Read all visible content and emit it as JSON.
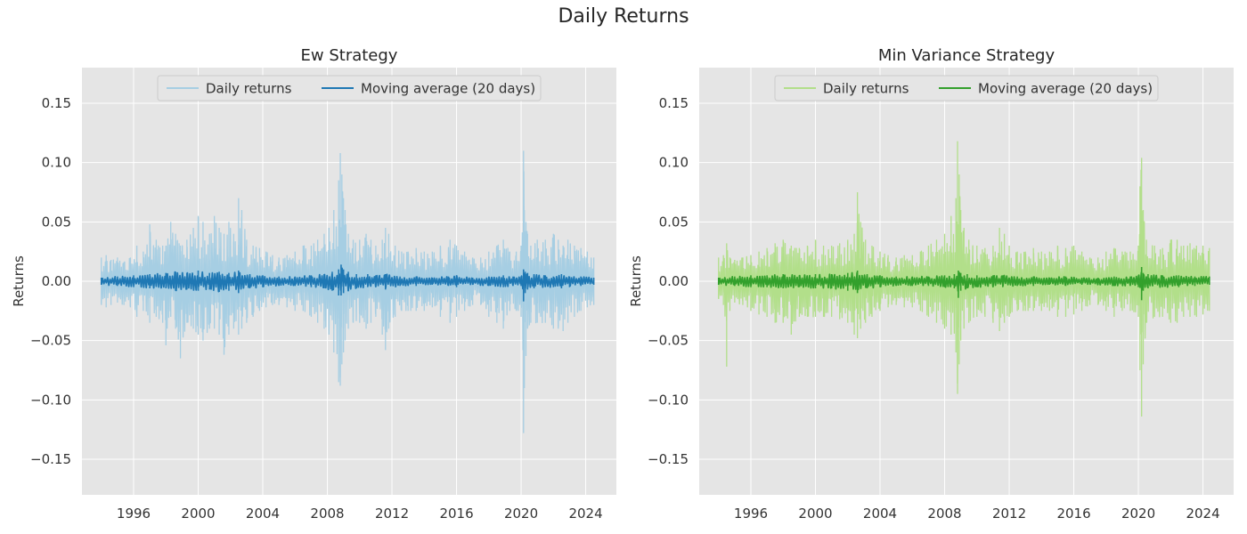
{
  "figure": {
    "title": "Daily Returns"
  },
  "chart_data": [
    {
      "type": "line",
      "title": "Ew Strategy",
      "xlabel": "",
      "ylabel": "Returns",
      "xlim": [
        1992.8,
        2025.9
      ],
      "ylim": [
        -0.18,
        0.18
      ],
      "x_ticks": [
        1996,
        2000,
        2004,
        2008,
        2012,
        2016,
        2020,
        2024
      ],
      "x_tick_labels": [
        "1996",
        "2000",
        "2004",
        "2008",
        "2012",
        "2016",
        "2020",
        "2024"
      ],
      "y_ticks": [
        -0.15,
        -0.1,
        -0.05,
        0.0,
        0.05,
        0.1,
        0.15
      ],
      "y_tick_labels": [
        "−0.15",
        "−0.10",
        "−0.05",
        "0.00",
        "0.05",
        "0.10",
        "0.15"
      ],
      "grid": true,
      "legend_position": "top-center",
      "series": [
        {
          "name": "Daily returns",
          "color": "#a6cee3",
          "x": [
            1994.0,
            1994.3,
            1994.6,
            1995.0,
            1995.4,
            1995.8,
            1996.2,
            1996.6,
            1997.0,
            1997.4,
            1997.8,
            1998.0,
            1998.3,
            1998.6,
            1998.9,
            1999.3,
            1999.7,
            2000.0,
            2000.3,
            2000.7,
            2001.0,
            2001.3,
            2001.6,
            2001.9,
            2002.2,
            2002.5,
            2002.7,
            2003.0,
            2003.4,
            2003.8,
            2004.2,
            2004.6,
            2005.0,
            2005.5,
            2006.0,
            2006.5,
            2007.0,
            2007.4,
            2007.8,
            2008.1,
            2008.4,
            2008.7,
            2008.8,
            2008.9,
            2009.0,
            2009.1,
            2009.3,
            2009.6,
            2010.0,
            2010.4,
            2010.7,
            2011.0,
            2011.4,
            2011.6,
            2011.8,
            2012.2,
            2012.6,
            2013.0,
            2013.5,
            2014.0,
            2014.5,
            2015.0,
            2015.6,
            2016.0,
            2016.5,
            2017.0,
            2017.5,
            2018.0,
            2018.5,
            2018.9,
            2019.3,
            2019.7,
            2020.0,
            2020.15,
            2020.2,
            2020.3,
            2020.4,
            2020.6,
            2021.0,
            2021.5,
            2022.0,
            2022.3,
            2022.6,
            2022.9,
            2023.3,
            2023.7,
            2024.1,
            2024.5
          ],
          "y_high": [
            0.02,
            0.022,
            0.018,
            0.02,
            0.016,
            0.02,
            0.03,
            0.025,
            0.048,
            0.035,
            0.03,
            0.03,
            0.05,
            0.04,
            0.03,
            0.035,
            0.045,
            0.055,
            0.05,
            0.04,
            0.055,
            0.045,
            0.04,
            0.05,
            0.04,
            0.07,
            0.06,
            0.035,
            0.03,
            0.028,
            0.025,
            0.022,
            0.02,
            0.022,
            0.025,
            0.03,
            0.03,
            0.035,
            0.04,
            0.045,
            0.06,
            0.085,
            0.108,
            0.09,
            0.07,
            0.06,
            0.04,
            0.035,
            0.035,
            0.04,
            0.035,
            0.03,
            0.035,
            0.045,
            0.04,
            0.03,
            0.025,
            0.025,
            0.028,
            0.025,
            0.025,
            0.03,
            0.035,
            0.03,
            0.025,
            0.02,
            0.02,
            0.025,
            0.03,
            0.035,
            0.025,
            0.025,
            0.03,
            0.11,
            0.06,
            0.05,
            0.04,
            0.03,
            0.035,
            0.035,
            0.04,
            0.035,
            0.03,
            0.035,
            0.03,
            0.028,
            0.025,
            0.02
          ],
          "y_low": [
            -0.02,
            -0.022,
            -0.02,
            -0.018,
            -0.02,
            -0.022,
            -0.03,
            -0.025,
            -0.035,
            -0.03,
            -0.035,
            -0.054,
            -0.03,
            -0.04,
            -0.065,
            -0.035,
            -0.04,
            -0.045,
            -0.05,
            -0.04,
            -0.04,
            -0.045,
            -0.062,
            -0.045,
            -0.04,
            -0.045,
            -0.04,
            -0.035,
            -0.03,
            -0.025,
            -0.022,
            -0.02,
            -0.02,
            -0.022,
            -0.025,
            -0.025,
            -0.03,
            -0.035,
            -0.04,
            -0.045,
            -0.06,
            -0.085,
            -0.088,
            -0.07,
            -0.06,
            -0.05,
            -0.04,
            -0.035,
            -0.035,
            -0.04,
            -0.035,
            -0.03,
            -0.045,
            -0.058,
            -0.04,
            -0.03,
            -0.025,
            -0.025,
            -0.025,
            -0.025,
            -0.022,
            -0.03,
            -0.035,
            -0.03,
            -0.025,
            -0.02,
            -0.02,
            -0.03,
            -0.035,
            -0.04,
            -0.025,
            -0.025,
            -0.03,
            -0.128,
            -0.09,
            -0.063,
            -0.04,
            -0.035,
            -0.035,
            -0.035,
            -0.04,
            -0.04,
            -0.042,
            -0.035,
            -0.03,
            -0.025,
            -0.022,
            -0.02
          ]
        },
        {
          "name": "Moving average (20 days)",
          "color": "#1f78b4",
          "x": [
            1994.0,
            1995.0,
            1996.0,
            1997.0,
            1998.0,
            1998.6,
            1999.3,
            2000.0,
            2000.7,
            2001.3,
            2001.9,
            2002.5,
            2003.2,
            2004.0,
            2005.0,
            2006.0,
            2007.0,
            2007.8,
            2008.3,
            2008.7,
            2008.85,
            2009.0,
            2009.3,
            2009.8,
            2010.5,
            2011.0,
            2011.6,
            2012.5,
            2013.5,
            2014.5,
            2015.5,
            2016.0,
            2017.0,
            2018.0,
            2018.9,
            2019.5,
            2020.0,
            2020.15,
            2020.25,
            2020.4,
            2020.8,
            2021.5,
            2022.0,
            2022.5,
            2023.0,
            2023.7,
            2024.5
          ],
          "y_high": [
            0.003,
            0.004,
            0.005,
            0.006,
            0.007,
            0.008,
            0.007,
            0.009,
            0.007,
            0.008,
            0.007,
            0.009,
            0.006,
            0.005,
            0.004,
            0.004,
            0.005,
            0.006,
            0.008,
            0.01,
            0.014,
            0.01,
            0.008,
            0.006,
            0.006,
            0.005,
            0.006,
            0.004,
            0.004,
            0.003,
            0.004,
            0.005,
            0.003,
            0.004,
            0.005,
            0.004,
            0.004,
            0.01,
            0.008,
            0.007,
            0.006,
            0.005,
            0.004,
            0.006,
            0.004,
            0.004,
            0.003
          ],
          "y_low": [
            -0.003,
            -0.004,
            -0.005,
            -0.006,
            -0.006,
            -0.008,
            -0.007,
            -0.008,
            -0.007,
            -0.009,
            -0.008,
            -0.01,
            -0.006,
            -0.005,
            -0.004,
            -0.004,
            -0.005,
            -0.006,
            -0.008,
            -0.012,
            -0.012,
            -0.01,
            -0.008,
            -0.006,
            -0.005,
            -0.005,
            -0.007,
            -0.004,
            -0.004,
            -0.003,
            -0.004,
            -0.005,
            -0.003,
            -0.004,
            -0.005,
            -0.004,
            -0.004,
            -0.017,
            -0.01,
            -0.007,
            -0.006,
            -0.005,
            -0.005,
            -0.006,
            -0.005,
            -0.004,
            -0.003
          ]
        }
      ]
    },
    {
      "type": "line",
      "title": "Min Variance Strategy",
      "xlabel": "",
      "ylabel": "Returns",
      "xlim": [
        1992.8,
        2025.9
      ],
      "ylim": [
        -0.18,
        0.18
      ],
      "x_ticks": [
        1996,
        2000,
        2004,
        2008,
        2012,
        2016,
        2020,
        2024
      ],
      "x_tick_labels": [
        "1996",
        "2000",
        "2004",
        "2008",
        "2012",
        "2016",
        "2020",
        "2024"
      ],
      "y_ticks": [
        -0.15,
        -0.1,
        -0.05,
        0.0,
        0.05,
        0.1,
        0.15
      ],
      "y_tick_labels": [
        "−0.15",
        "−0.10",
        "−0.05",
        "0.00",
        "0.05",
        "0.10",
        "0.15"
      ],
      "grid": true,
      "legend_position": "top-center",
      "series": [
        {
          "name": "Daily returns",
          "color": "#b2df8a",
          "x": [
            1994.0,
            1994.3,
            1994.5,
            1994.7,
            1995.0,
            1995.5,
            1996.0,
            1996.5,
            1997.0,
            1997.5,
            1998.0,
            1998.5,
            1999.0,
            1999.5,
            2000.0,
            2000.5,
            2001.0,
            2001.5,
            2002.0,
            2002.4,
            2002.6,
            2002.8,
            2003.1,
            2003.5,
            2004.0,
            2004.5,
            2005.0,
            2005.5,
            2006.0,
            2006.5,
            2007.0,
            2007.5,
            2008.0,
            2008.4,
            2008.7,
            2008.8,
            2008.9,
            2009.0,
            2009.2,
            2009.5,
            2010.0,
            2010.5,
            2011.0,
            2011.4,
            2011.7,
            2012.0,
            2012.5,
            2013.0,
            2013.5,
            2014.0,
            2014.5,
            2015.0,
            2015.5,
            2016.0,
            2016.5,
            2017.0,
            2017.5,
            2018.0,
            2018.5,
            2019.0,
            2019.5,
            2020.0,
            2020.1,
            2020.2,
            2020.3,
            2020.5,
            2021.0,
            2021.5,
            2022.0,
            2022.4,
            2022.8,
            2023.2,
            2023.6,
            2024.0,
            2024.4
          ],
          "y_high": [
            0.02,
            0.022,
            0.032,
            0.02,
            0.018,
            0.02,
            0.022,
            0.025,
            0.028,
            0.032,
            0.035,
            0.03,
            0.028,
            0.03,
            0.035,
            0.03,
            0.03,
            0.032,
            0.035,
            0.04,
            0.075,
            0.05,
            0.035,
            0.03,
            0.025,
            0.022,
            0.02,
            0.022,
            0.022,
            0.025,
            0.03,
            0.035,
            0.04,
            0.055,
            0.07,
            0.118,
            0.09,
            0.06,
            0.045,
            0.035,
            0.03,
            0.028,
            0.03,
            0.045,
            0.04,
            0.03,
            0.025,
            0.025,
            0.028,
            0.025,
            0.025,
            0.03,
            0.028,
            0.03,
            0.025,
            0.02,
            0.02,
            0.025,
            0.028,
            0.025,
            0.025,
            0.03,
            0.08,
            0.104,
            0.06,
            0.035,
            0.03,
            0.028,
            0.035,
            0.035,
            0.03,
            0.032,
            0.03,
            0.03,
            0.028
          ],
          "y_low": [
            -0.015,
            -0.02,
            -0.072,
            -0.025,
            -0.018,
            -0.02,
            -0.025,
            -0.028,
            -0.03,
            -0.035,
            -0.035,
            -0.045,
            -0.03,
            -0.03,
            -0.03,
            -0.03,
            -0.03,
            -0.032,
            -0.035,
            -0.045,
            -0.048,
            -0.04,
            -0.035,
            -0.03,
            -0.025,
            -0.022,
            -0.02,
            -0.022,
            -0.022,
            -0.025,
            -0.03,
            -0.035,
            -0.04,
            -0.045,
            -0.06,
            -0.095,
            -0.07,
            -0.05,
            -0.04,
            -0.035,
            -0.03,
            -0.03,
            -0.035,
            -0.042,
            -0.035,
            -0.03,
            -0.025,
            -0.025,
            -0.025,
            -0.025,
            -0.025,
            -0.03,
            -0.03,
            -0.028,
            -0.025,
            -0.02,
            -0.02,
            -0.025,
            -0.03,
            -0.025,
            -0.025,
            -0.03,
            -0.075,
            -0.114,
            -0.07,
            -0.035,
            -0.03,
            -0.03,
            -0.035,
            -0.035,
            -0.03,
            -0.03,
            -0.03,
            -0.028,
            -0.025
          ]
        },
        {
          "name": "Moving average (20 days)",
          "color": "#33a02c",
          "x": [
            1994.0,
            1995.0,
            1996.0,
            1997.0,
            1998.0,
            1999.0,
            2000.0,
            2001.0,
            2002.0,
            2002.6,
            2003.2,
            2004.0,
            2005.0,
            2006.0,
            2007.0,
            2008.0,
            2008.6,
            2008.85,
            2009.0,
            2009.4,
            2010.0,
            2011.0,
            2011.6,
            2012.5,
            2013.5,
            2014.5,
            2015.5,
            2016.5,
            2017.5,
            2018.5,
            2019.5,
            2020.0,
            2020.2,
            2020.3,
            2020.6,
            2021.5,
            2022.5,
            2023.5,
            2024.4
          ],
          "y_high": [
            0.003,
            0.004,
            0.005,
            0.005,
            0.006,
            0.005,
            0.006,
            0.006,
            0.007,
            0.009,
            0.006,
            0.005,
            0.004,
            0.004,
            0.004,
            0.005,
            0.006,
            0.009,
            0.007,
            0.006,
            0.005,
            0.005,
            0.005,
            0.004,
            0.004,
            0.003,
            0.004,
            0.003,
            0.003,
            0.004,
            0.004,
            0.005,
            0.012,
            0.007,
            0.006,
            0.005,
            0.005,
            0.004,
            0.004
          ],
          "y_low": [
            -0.003,
            -0.004,
            -0.005,
            -0.005,
            -0.006,
            -0.005,
            -0.006,
            -0.006,
            -0.008,
            -0.01,
            -0.006,
            -0.005,
            -0.004,
            -0.004,
            -0.004,
            -0.005,
            -0.006,
            -0.014,
            -0.008,
            -0.006,
            -0.005,
            -0.005,
            -0.005,
            -0.004,
            -0.004,
            -0.003,
            -0.004,
            -0.003,
            -0.003,
            -0.004,
            -0.004,
            -0.005,
            -0.016,
            -0.008,
            -0.006,
            -0.005,
            -0.005,
            -0.004,
            -0.003
          ]
        }
      ]
    }
  ]
}
